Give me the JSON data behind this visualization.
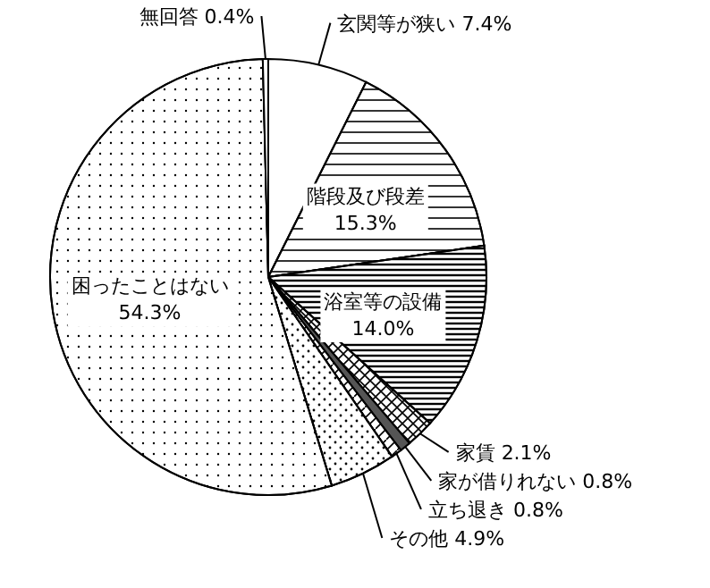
{
  "chart_data": {
    "type": "pie",
    "categories": [
      "玄関等が狭い",
      "階段及び段差",
      "浴室等の設備",
      "家賃",
      "家が借りれない",
      "立ち退き",
      "その他",
      "困ったことはない",
      "無回答"
    ],
    "values": [
      7.4,
      15.3,
      14.0,
      2.1,
      0.8,
      0.8,
      4.9,
      54.3,
      0.4
    ],
    "colors": [
      "#ffffff",
      "#ffffff",
      "#ffffff",
      "#ffffff",
      "#ffffff",
      "#ffffff",
      "#ffffff",
      "#ffffff",
      "#ffffff"
    ],
    "value_labels": [
      "7.4%",
      "15.3%",
      "14.0%",
      "2.1%",
      "0.8%",
      "0.8%",
      "4.9%",
      "54.3%",
      "0.4%"
    ]
  }
}
